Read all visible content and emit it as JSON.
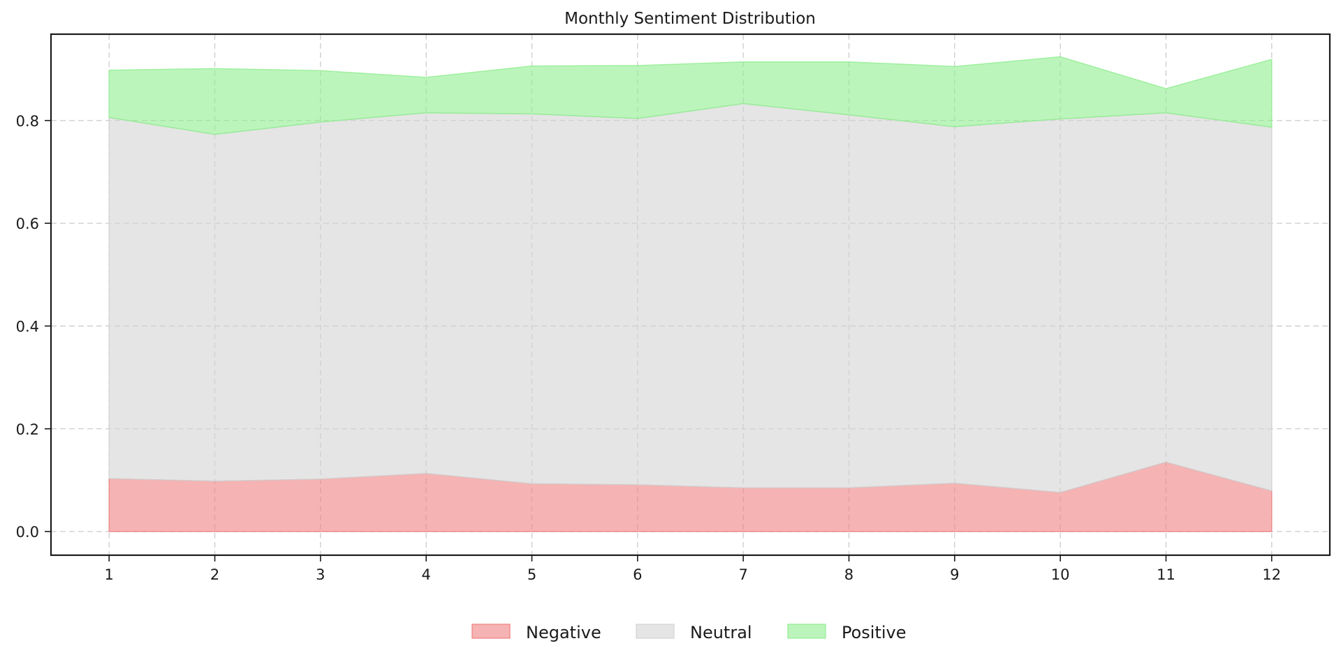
{
  "chart_data": {
    "type": "area",
    "stacked": true,
    "title": "Monthly Sentiment Distribution",
    "xlabel": "",
    "ylabel": "",
    "x": [
      1,
      2,
      3,
      4,
      5,
      6,
      7,
      8,
      9,
      10,
      11,
      12
    ],
    "xticks": [
      "1",
      "2",
      "3",
      "4",
      "5",
      "6",
      "7",
      "8",
      "9",
      "10",
      "11",
      "12"
    ],
    "yticks": [
      "0.0",
      "0.2",
      "0.4",
      "0.6",
      "0.8"
    ],
    "ytick_values": [
      0.0,
      0.2,
      0.4,
      0.6,
      0.8
    ],
    "xlim": [
      0.45,
      12.55
    ],
    "ylim": [
      -0.046,
      0.968
    ],
    "grid": true,
    "legend_position": "bottom-center",
    "series": [
      {
        "name": "Negative",
        "color": "#f08080",
        "values": [
          0.103,
          0.098,
          0.102,
          0.113,
          0.093,
          0.091,
          0.085,
          0.085,
          0.094,
          0.076,
          0.135,
          0.079
        ]
      },
      {
        "name": "Neutral",
        "color": "#d3d3d3",
        "values": [
          0.703,
          0.675,
          0.695,
          0.702,
          0.72,
          0.713,
          0.748,
          0.726,
          0.694,
          0.727,
          0.68,
          0.708
        ]
      },
      {
        "name": "Positive",
        "color": "#90ee90",
        "values": [
          0.092,
          0.128,
          0.1,
          0.069,
          0.093,
          0.103,
          0.081,
          0.103,
          0.117,
          0.121,
          0.047,
          0.132
        ]
      }
    ]
  }
}
